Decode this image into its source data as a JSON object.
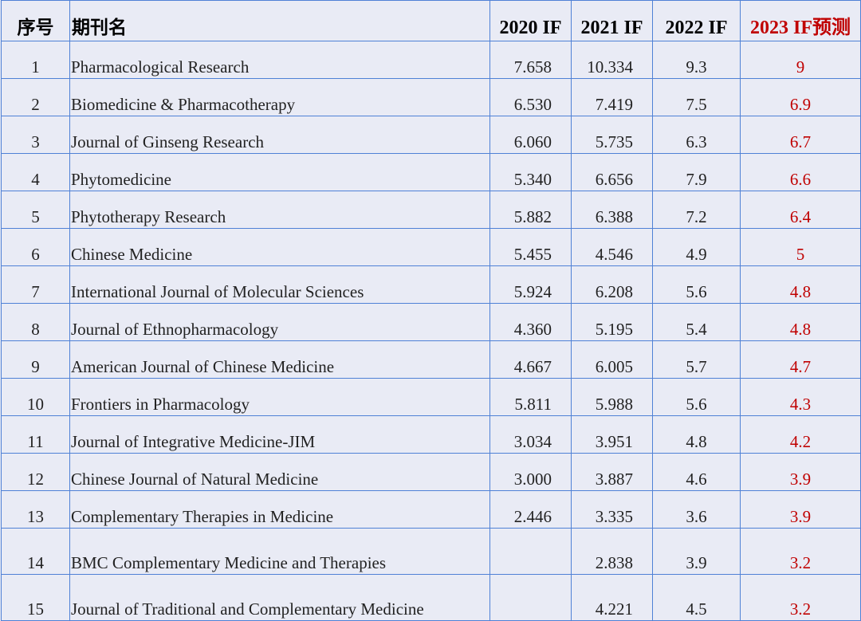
{
  "headers": {
    "no": "序号",
    "journal": "期刊名",
    "if2020": "2020 IF",
    "if2021": "2021 IF",
    "if2022": "2022 IF",
    "if2023": "2023 IF预测"
  },
  "rows": [
    {
      "no": "1",
      "journal": "Pharmacological Research",
      "if2020": "7.658",
      "if2021": "10.334",
      "if2022": "9.3",
      "if2023": "9"
    },
    {
      "no": "2",
      "journal": "Biomedicine & Pharmacotherapy",
      "if2020": "6.530",
      "if2021": "7.419",
      "if2022": "7.5",
      "if2023": "6.9"
    },
    {
      "no": "3",
      "journal": "Journal of Ginseng Research",
      "if2020": "6.060",
      "if2021": "5.735",
      "if2022": "6.3",
      "if2023": "6.7"
    },
    {
      "no": "4",
      "journal": "Phytomedicine",
      "if2020": "5.340",
      "if2021": "6.656",
      "if2022": "7.9",
      "if2023": "6.6"
    },
    {
      "no": "5",
      "journal": "Phytotherapy Research",
      "if2020": "5.882",
      "if2021": "6.388",
      "if2022": "7.2",
      "if2023": "6.4"
    },
    {
      "no": "6",
      "journal": "Chinese Medicine",
      "if2020": "5.455",
      "if2021": "4.546",
      "if2022": "4.9",
      "if2023": "5"
    },
    {
      "no": "7",
      "journal": "International Journal of Molecular Sciences",
      "if2020": "5.924",
      "if2021": "6.208",
      "if2022": "5.6",
      "if2023": "4.8"
    },
    {
      "no": "8",
      "journal": "Journal of Ethnopharmacology",
      "if2020": "4.360",
      "if2021": "5.195",
      "if2022": "5.4",
      "if2023": "4.8"
    },
    {
      "no": "9",
      "journal": "American Journal of Chinese Medicine",
      "if2020": "4.667",
      "if2021": "6.005",
      "if2022": "5.7",
      "if2023": "4.7"
    },
    {
      "no": "10",
      "journal": "Frontiers in Pharmacology",
      "if2020": "5.811",
      "if2021": "5.988",
      "if2022": "5.6",
      "if2023": "4.3"
    },
    {
      "no": "11",
      "journal": "Journal of Integrative Medicine-JIM",
      "if2020": "3.034",
      "if2021": "3.951",
      "if2022": "4.8",
      "if2023": "4.2"
    },
    {
      "no": "12",
      "journal": "Chinese Journal of Natural Medicine",
      "if2020": "3.000",
      "if2021": "3.887",
      "if2022": "4.6",
      "if2023": "3.9"
    },
    {
      "no": "13",
      "journal": "Complementary Therapies in Medicine",
      "if2020": "2.446",
      "if2021": "3.335",
      "if2022": "3.6",
      "if2023": "3.9"
    },
    {
      "no": "14",
      "journal": "BMC Complementary Medicine and Therapies",
      "if2020": "",
      "if2021": "2.838",
      "if2022": "3.9",
      "if2023": "3.2"
    },
    {
      "no": "15",
      "journal": "Journal of Traditional and Complementary Medicine",
      "if2020": "",
      "if2021": "4.221",
      "if2022": "4.5",
      "if2023": "3.2"
    }
  ],
  "colors": {
    "border": "#4f81d6",
    "background": "#e9ebf5",
    "prediction": "#c00000"
  }
}
